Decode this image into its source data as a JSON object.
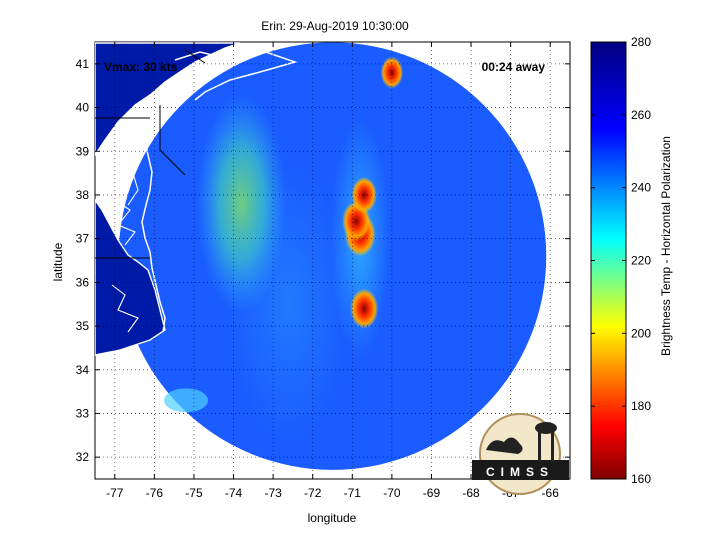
{
  "chart_data": {
    "type": "heatmap",
    "title": "Erin: 29-Aug-2019 10:30:00",
    "xlabel": "longitude",
    "ylabel": "latitude",
    "xlim": [
      -77.5,
      -65.5
    ],
    "ylim": [
      31.5,
      41.5
    ],
    "xticks": [
      -77,
      -76,
      -75,
      -74,
      -73,
      -72,
      -71,
      -70,
      -69,
      -68,
      -67,
      -66
    ],
    "yticks": [
      32,
      33,
      34,
      35,
      36,
      37,
      38,
      39,
      40,
      41
    ],
    "grid": true,
    "annotations": {
      "vmax": "Vmax: 30 kts",
      "away": "00:24 away"
    },
    "colorbar": {
      "label": "Brightness Temp - Horizontal Polarization",
      "range": [
        160,
        280
      ],
      "ticks": [
        160,
        180,
        200,
        220,
        240,
        260,
        280
      ]
    },
    "swath": {
      "center_lon": -71.5,
      "center_lat": 36.6,
      "radius_deg": 5.4
    },
    "features": [
      {
        "lon": -70.8,
        "lat": 37.1,
        "value": 170
      },
      {
        "lon": -70.9,
        "lat": 37.4,
        "value": 175
      },
      {
        "lon": -70.7,
        "lat": 38.0,
        "value": 180
      },
      {
        "lon": -70.7,
        "lat": 35.4,
        "value": 175
      },
      {
        "lon": -70.0,
        "lat": 40.8,
        "value": 185
      }
    ]
  },
  "logo": {
    "text": "CIMSS"
  }
}
